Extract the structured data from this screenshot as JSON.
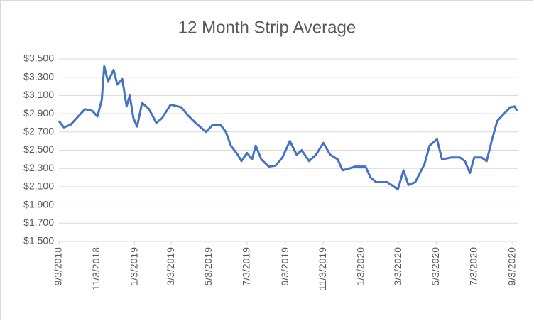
{
  "chart_data": {
    "type": "line",
    "title": "12 Month Strip Average",
    "x": [
      "9/3/2018",
      "9/11/2018",
      "9/22/2018",
      "10/4/2018",
      "10/15/2018",
      "10/27/2018",
      "11/4/2018",
      "11/11/2018",
      "11/15/2018",
      "11/21/2018",
      "11/30/2018",
      "12/6/2018",
      "12/14/2018",
      "12/21/2018",
      "12/26/2018",
      "1/1/2019",
      "1/7/2019",
      "1/15/2019",
      "1/26/2019",
      "2/7/2019",
      "2/16/2019",
      "3/2/2019",
      "3/19/2019",
      "3/30/2019",
      "4/11/2019",
      "4/28/2019",
      "5/9/2019",
      "5/21/2019",
      "5/30/2019",
      "6/7/2019",
      "6/18/2019",
      "6/24/2019",
      "7/3/2019",
      "7/11/2019",
      "7/17/2019",
      "7/26/2019",
      "8/7/2019",
      "8/18/2019",
      "8/29/2019",
      "9/10/2019",
      "9/21/2019",
      "9/29/2019",
      "10/11/2019",
      "10/22/2019",
      "11/3/2019",
      "11/14/2019",
      "11/26/2019",
      "12/4/2019",
      "12/15/2019",
      "12/24/2019",
      "1/10/2020",
      "1/18/2020",
      "1/27/2020",
      "2/14/2020",
      "2/25/2020",
      "3/2/2020",
      "3/11/2020",
      "3/19/2020",
      "3/30/2020",
      "4/14/2020",
      "4/22/2020",
      "5/4/2020",
      "5/12/2020",
      "5/27/2020",
      "6/10/2020",
      "6/18/2020",
      "6/26/2020",
      "7/3/2020",
      "7/15/2020",
      "7/23/2020",
      "7/31/2020",
      "8/9/2020",
      "8/20/2020",
      "8/30/2020",
      "9/6/2020",
      "9/10/2020"
    ],
    "series": [
      {
        "name": "12 Month Strip Average",
        "color": "#4472c4",
        "values": [
          2.82,
          2.75,
          2.78,
          2.87,
          2.95,
          2.93,
          2.87,
          3.05,
          3.42,
          3.25,
          3.38,
          3.22,
          3.28,
          2.98,
          3.1,
          2.85,
          2.76,
          3.02,
          2.95,
          2.8,
          2.85,
          3.0,
          2.97,
          2.88,
          2.8,
          2.7,
          2.78,
          2.78,
          2.7,
          2.55,
          2.45,
          2.38,
          2.47,
          2.4,
          2.55,
          2.4,
          2.32,
          2.33,
          2.42,
          2.6,
          2.45,
          2.5,
          2.38,
          2.45,
          2.58,
          2.45,
          2.4,
          2.28,
          2.3,
          2.32,
          2.32,
          2.2,
          2.15,
          2.15,
          2.1,
          2.07,
          2.28,
          2.12,
          2.15,
          2.35,
          2.55,
          2.62,
          2.4,
          2.42,
          2.42,
          2.38,
          2.25,
          2.42,
          2.42,
          2.38,
          2.6,
          2.82,
          2.9,
          2.97,
          2.98,
          2.93
        ]
      }
    ],
    "xlim": [
      "9/3/2018",
      "9/11/2020"
    ],
    "xticks": [
      "9/3/2018",
      "11/3/2018",
      "1/3/2019",
      "3/3/2019",
      "5/3/2019",
      "7/3/2019",
      "9/3/2019",
      "11/3/2019",
      "1/3/2020",
      "3/3/2020",
      "5/3/2020",
      "7/3/2020",
      "9/3/2020"
    ],
    "ylim": [
      1.5,
      3.5
    ],
    "yticks": [
      {
        "value": 1.5,
        "label": "$1.500"
      },
      {
        "value": 1.7,
        "label": "$1.700"
      },
      {
        "value": 1.9,
        "label": "$1.900"
      },
      {
        "value": 2.1,
        "label": "$2.100"
      },
      {
        "value": 2.3,
        "label": "$2.300"
      },
      {
        "value": 2.5,
        "label": "$2.500"
      },
      {
        "value": 2.7,
        "label": "$2.700"
      },
      {
        "value": 2.9,
        "label": "$2.900"
      },
      {
        "value": 3.1,
        "label": "$3.100"
      },
      {
        "value": 3.3,
        "label": "$3.300"
      },
      {
        "value": 3.5,
        "label": "$3.500"
      }
    ],
    "grid": true
  }
}
